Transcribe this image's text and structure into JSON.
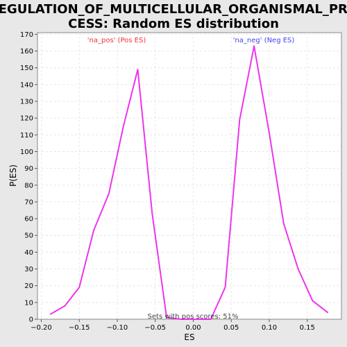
{
  "chart_data": {
    "type": "line",
    "title_line1": "REGULATION_OF_MULTICELLULAR_ORGANISMAL_PRO",
    "title_line2": "CESS: Random ES distribution",
    "xlabel": "ES",
    "ylabel": "P(ES)",
    "xlim": [
      -0.205,
      0.195
    ],
    "ylim": [
      0,
      171
    ],
    "xticks": [
      -0.2,
      -0.15,
      -0.1,
      -0.05,
      0.0,
      0.05,
      0.1,
      0.15
    ],
    "xtick_labels": [
      "−0.20",
      "−0.15",
      "−0.10",
      "−0.05",
      "0.00",
      "0.05",
      "0.10",
      "0.15"
    ],
    "yticks": [
      0,
      10,
      20,
      30,
      40,
      50,
      60,
      70,
      80,
      90,
      100,
      110,
      120,
      130,
      140,
      150,
      160,
      170
    ],
    "grid": true,
    "series": [
      {
        "color": "#ee33ee",
        "x": [
          -0.188,
          -0.169,
          -0.15,
          -0.131,
          -0.111,
          -0.092,
          -0.073,
          -0.054,
          -0.035,
          -0.016,
          0.003,
          0.023,
          0.042,
          0.061,
          0.08,
          0.1,
          0.119,
          0.138,
          0.157,
          0.177
        ],
        "y": [
          3,
          8,
          19,
          53,
          75,
          115,
          149,
          63,
          1,
          0,
          0,
          0,
          19,
          119,
          163,
          111,
          57,
          30,
          11,
          4
        ]
      }
    ],
    "annotations": {
      "pos_label": "'na_pos' (Pos ES)",
      "neg_label": "'na_neg' (Neg ES)",
      "pos_color": "#ee3333",
      "neg_color": "#4444ee",
      "bottom_note": "Sets with pos scores: 51%"
    }
  }
}
